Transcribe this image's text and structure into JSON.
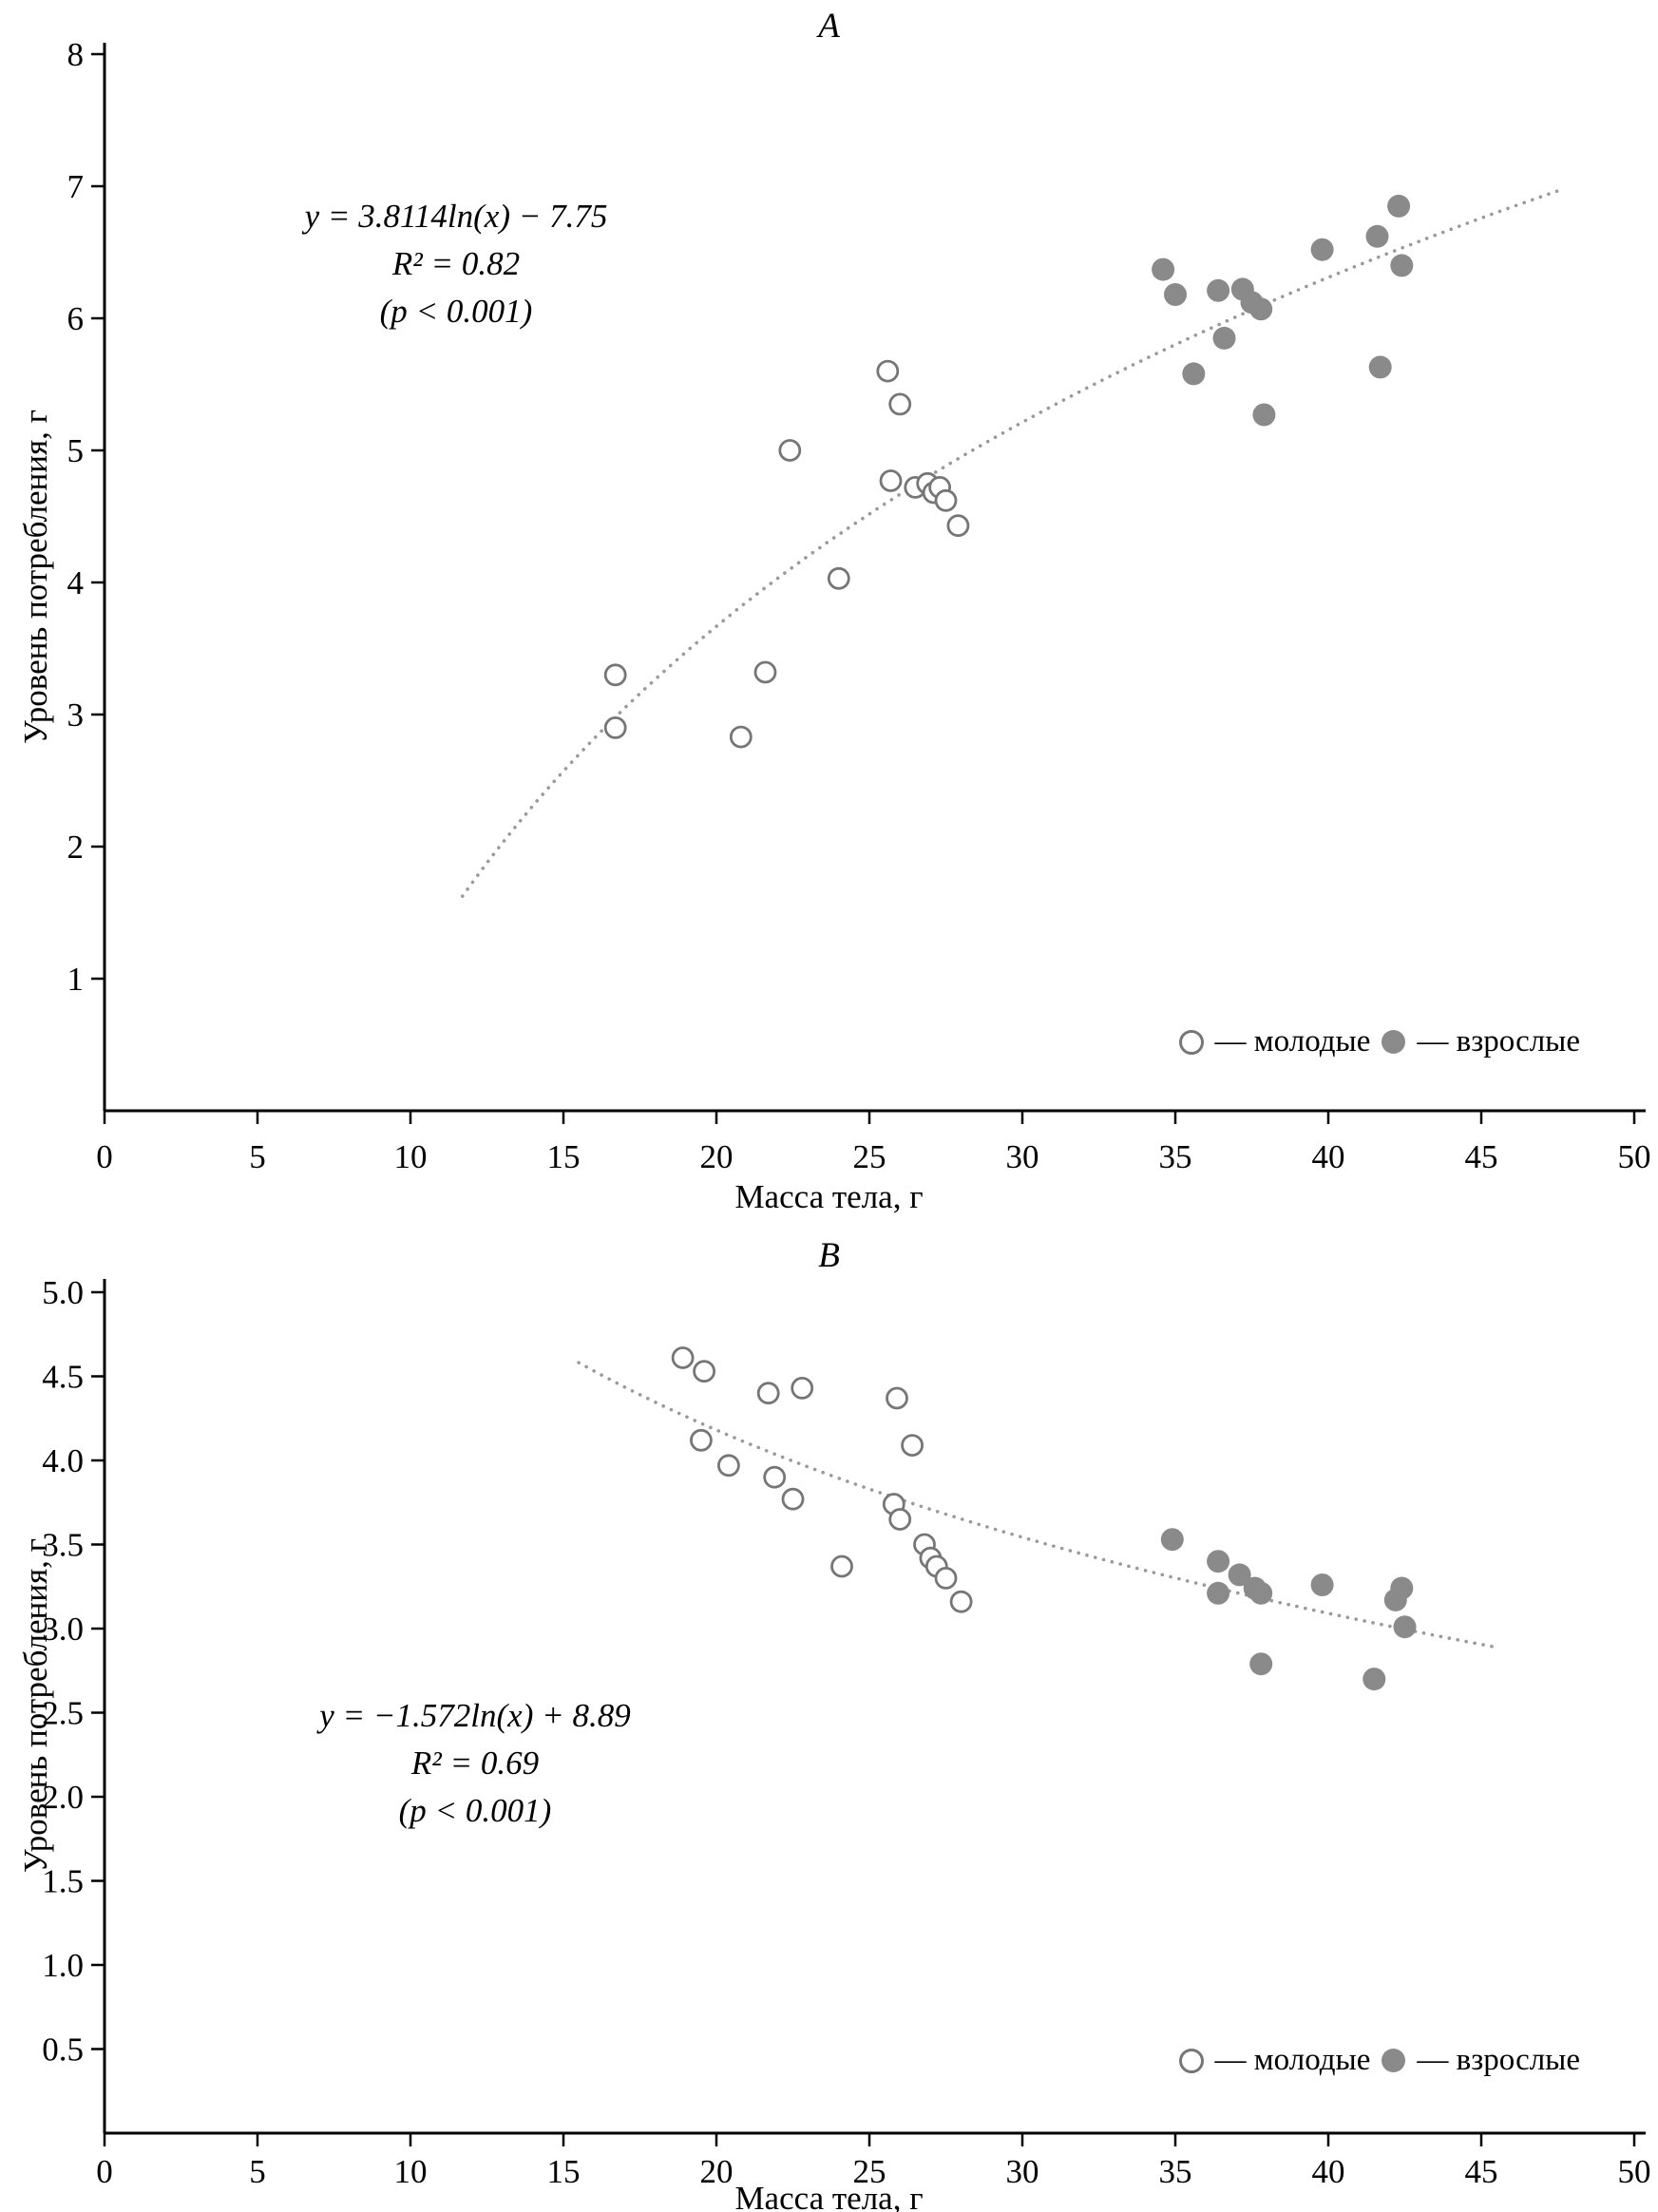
{
  "colors": {
    "young_stroke": "#767676",
    "young_fill": "#ffffff",
    "adult_fill": "#8a8a8a",
    "trend": "#9a9a9a",
    "axis": "#000000"
  },
  "chart_data": [
    {
      "type": "scatter",
      "title": "A",
      "xlabel": "Масса тела, г",
      "ylabel": "Уровень потребления, г",
      "xlim": [
        0,
        50
      ],
      "ylim": [
        0,
        8
      ],
      "grid": false,
      "legend_position": "bottom-right",
      "annotation": {
        "line1": "y = 3.8114ln(x) − 7.75",
        "line2": "R² = 0.82",
        "line3": "(p < 0.001)"
      },
      "trend": {
        "type": "log",
        "a": 3.8114,
        "b": -7.75,
        "x_start": 11.7,
        "x_end": 47.7
      },
      "xticks": [
        {
          "v": 0,
          "label": "0"
        },
        {
          "v": 5,
          "label": "5"
        },
        {
          "v": 10,
          "label": "10"
        },
        {
          "v": 15,
          "label": "15"
        },
        {
          "v": 20,
          "label": "20"
        },
        {
          "v": 25,
          "label": "25"
        },
        {
          "v": 30,
          "label": "30"
        },
        {
          "v": 35,
          "label": "35"
        },
        {
          "v": 40,
          "label": "40"
        },
        {
          "v": 45,
          "label": "45"
        },
        {
          "v": 50,
          "label": "50"
        }
      ],
      "yticks": [
        {
          "v": 1,
          "label": "1"
        },
        {
          "v": 2,
          "label": "2"
        },
        {
          "v": 3,
          "label": "3"
        },
        {
          "v": 4,
          "label": "4"
        },
        {
          "v": 5,
          "label": "5"
        },
        {
          "v": 6,
          "label": "6"
        },
        {
          "v": 7,
          "label": "7"
        },
        {
          "v": 8,
          "label": "8"
        }
      ],
      "legend": {
        "young": "— молодые",
        "adult": "— взрослые"
      },
      "series": [
        {
          "name": "молодые",
          "marker": "open",
          "points": [
            [
              16.7,
              3.3
            ],
            [
              16.7,
              2.9
            ],
            [
              20.8,
              2.83
            ],
            [
              21.6,
              3.32
            ],
            [
              22.4,
              5.0
            ],
            [
              24.0,
              4.03
            ],
            [
              25.6,
              5.6
            ],
            [
              26.0,
              5.35
            ],
            [
              25.7,
              4.77
            ],
            [
              26.5,
              4.72
            ],
            [
              26.9,
              4.75
            ],
            [
              27.1,
              4.68
            ],
            [
              27.3,
              4.72
            ],
            [
              27.5,
              4.62
            ],
            [
              27.9,
              4.43
            ]
          ]
        },
        {
          "name": "взрослые",
          "marker": "filled",
          "points": [
            [
              34.6,
              6.37
            ],
            [
              35.0,
              6.18
            ],
            [
              35.6,
              5.58
            ],
            [
              36.4,
              6.21
            ],
            [
              36.6,
              5.85
            ],
            [
              37.2,
              6.22
            ],
            [
              37.5,
              6.12
            ],
            [
              37.8,
              6.07
            ],
            [
              37.9,
              5.27
            ],
            [
              39.8,
              6.52
            ],
            [
              41.6,
              6.62
            ],
            [
              41.7,
              5.63
            ],
            [
              42.3,
              6.85
            ],
            [
              42.4,
              6.4
            ]
          ]
        }
      ]
    },
    {
      "type": "scatter",
      "title": "B",
      "xlabel": "Масса тела, г",
      "ylabel": "Уровень потребления, г",
      "xlim": [
        0,
        50
      ],
      "ylim": [
        0,
        5
      ],
      "grid": false,
      "legend_position": "bottom-right",
      "annotation": {
        "line1": "y = −1.572ln(x) + 8.89",
        "line2": "R² = 0.69",
        "line3": "(p < 0.001)"
      },
      "trend": {
        "type": "log",
        "a": -1.572,
        "b": 8.89,
        "x_start": 15.5,
        "x_end": 45.5
      },
      "xticks": [
        {
          "v": 0,
          "label": "0"
        },
        {
          "v": 5,
          "label": "5"
        },
        {
          "v": 10,
          "label": "10"
        },
        {
          "v": 15,
          "label": "15"
        },
        {
          "v": 20,
          "label": "20"
        },
        {
          "v": 25,
          "label": "25"
        },
        {
          "v": 30,
          "label": "30"
        },
        {
          "v": 35,
          "label": "35"
        },
        {
          "v": 40,
          "label": "40"
        },
        {
          "v": 45,
          "label": "45"
        },
        {
          "v": 50,
          "label": "50"
        }
      ],
      "yticks": [
        {
          "v": 0.5,
          "label": "0.5"
        },
        {
          "v": 1,
          "label": "1.0"
        },
        {
          "v": 1.5,
          "label": "1.5"
        },
        {
          "v": 2,
          "label": "2.0"
        },
        {
          "v": 2.5,
          "label": "2.5"
        },
        {
          "v": 3,
          "label": "3.0"
        },
        {
          "v": 3.5,
          "label": "3.5"
        },
        {
          "v": 4,
          "label": "4.0"
        },
        {
          "v": 4.5,
          "label": "4.5"
        },
        {
          "v": 5,
          "label": "5.0"
        }
      ],
      "legend": {
        "young": "— молодые",
        "adult": "— взрослые"
      },
      "series": [
        {
          "name": "молодые",
          "marker": "open",
          "points": [
            [
              18.9,
              4.61
            ],
            [
              19.6,
              4.53
            ],
            [
              19.5,
              4.12
            ],
            [
              20.4,
              3.97
            ],
            [
              21.7,
              4.4
            ],
            [
              22.8,
              4.43
            ],
            [
              21.9,
              3.9
            ],
            [
              22.5,
              3.77
            ],
            [
              24.1,
              3.37
            ],
            [
              25.9,
              4.37
            ],
            [
              26.4,
              4.09
            ],
            [
              25.8,
              3.74
            ],
            [
              26.0,
              3.65
            ],
            [
              26.8,
              3.5
            ],
            [
              27.0,
              3.42
            ],
            [
              27.2,
              3.37
            ],
            [
              27.5,
              3.3
            ],
            [
              28.0,
              3.16
            ]
          ]
        },
        {
          "name": "взрослые",
          "marker": "filled",
          "points": [
            [
              34.9,
              3.53
            ],
            [
              36.4,
              3.4
            ],
            [
              36.4,
              3.21
            ],
            [
              37.1,
              3.32
            ],
            [
              37.6,
              3.24
            ],
            [
              37.8,
              3.21
            ],
            [
              37.8,
              2.79
            ],
            [
              39.8,
              3.26
            ],
            [
              41.5,
              2.7
            ],
            [
              42.2,
              3.17
            ],
            [
              42.4,
              3.24
            ],
            [
              42.5,
              3.01
            ]
          ]
        }
      ]
    }
  ]
}
